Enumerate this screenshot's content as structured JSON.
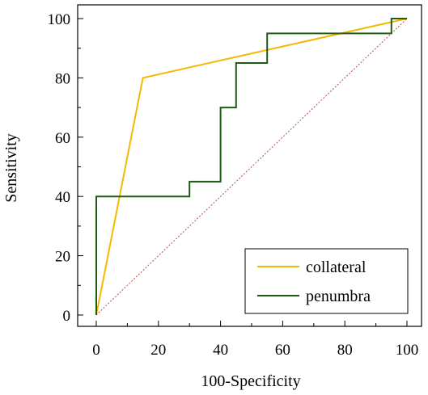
{
  "chart_data": {
    "type": "line",
    "xlabel": "100-Specificity",
    "ylabel": "Sensitivity",
    "xlim": [
      0,
      100
    ],
    "ylim": [
      0,
      100
    ],
    "xticks": [
      0,
      20,
      40,
      60,
      80,
      100
    ],
    "yticks": [
      0,
      20,
      40,
      60,
      80,
      100
    ],
    "xtick_labels": [
      "0",
      "20",
      "40",
      "60",
      "80",
      "100"
    ],
    "ytick_labels": [
      "0",
      "20",
      "40",
      "60",
      "80",
      "100"
    ],
    "grid": false,
    "legend_position": "bottom-right",
    "reference_line": {
      "x": [
        0,
        100
      ],
      "y": [
        0,
        100
      ],
      "color": "#b05050",
      "style": "dotted"
    },
    "series": [
      {
        "name": "collateral",
        "color": "#f5b800",
        "x": [
          0,
          15,
          100
        ],
        "y": [
          0,
          80,
          100
        ]
      },
      {
        "name": "penumbra",
        "color": "#1e5c14",
        "x": [
          0,
          0,
          30,
          30,
          40,
          40,
          45,
          45,
          55,
          55,
          95,
          95,
          100
        ],
        "y": [
          0,
          40,
          40,
          45,
          45,
          70,
          70,
          85,
          85,
          95,
          95,
          100,
          100
        ]
      }
    ]
  }
}
